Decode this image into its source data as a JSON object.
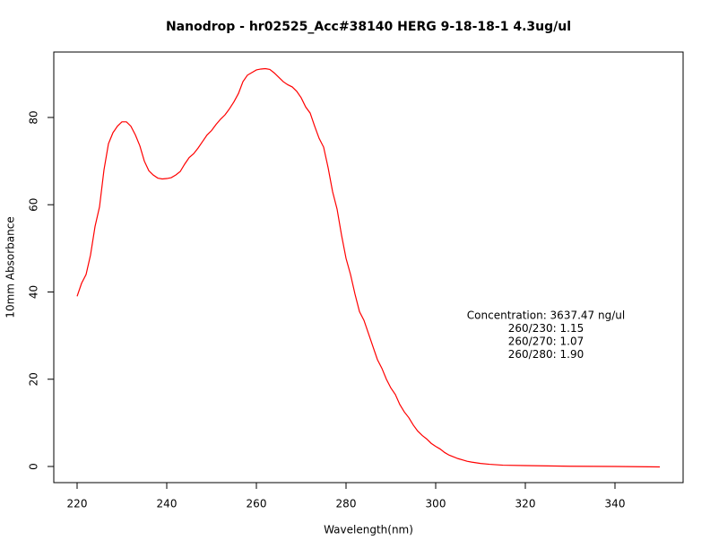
{
  "chart_data": {
    "type": "line",
    "title": "Nanodrop - hr02525_Acc#38140  HERG 9-18-18-1 4.3ug/ul",
    "x_label": "Wavelength(nm)",
    "y_label": "10mm Absorbance",
    "annotations": [
      "Concentration: 3637.47 ng/ul",
      "260/230: 1.15",
      "260/270: 1.07",
      "260/280: 1.90"
    ],
    "x": [
      220,
      221,
      222,
      223,
      224,
      225,
      226,
      227,
      228,
      229,
      230,
      231,
      232,
      233,
      234,
      235,
      236,
      237,
      238,
      239,
      240,
      241,
      242,
      243,
      244,
      245,
      246,
      247,
      248,
      249,
      250,
      251,
      252,
      253,
      254,
      255,
      256,
      257,
      258,
      259,
      260,
      261,
      262,
      263,
      264,
      265,
      266,
      267,
      268,
      269,
      270,
      271,
      272,
      273,
      274,
      275,
      276,
      277,
      278,
      279,
      280,
      281,
      282,
      283,
      284,
      285,
      286,
      287,
      288,
      289,
      290,
      291,
      292,
      293,
      294,
      295,
      296,
      297,
      298,
      299,
      300,
      301,
      302,
      303,
      304,
      305,
      306,
      307,
      308,
      310,
      312,
      315,
      320,
      330,
      340,
      350
    ],
    "series": [
      {
        "name": "absorbance",
        "color": "#ff0000",
        "values": [
          39,
          42,
          44,
          48.5,
          55,
          59.5,
          68,
          74,
          76.5,
          78,
          79,
          79,
          78,
          76,
          73.5,
          70,
          67.8,
          66.8,
          66.1,
          65.9,
          66,
          66.2,
          66.8,
          67.6,
          69.3,
          70.8,
          71.7,
          73,
          74.5,
          76,
          77,
          78.4,
          79.6,
          80.6,
          82,
          83.6,
          85.5,
          88.2,
          89.7,
          90.3,
          90.9,
          91.1,
          91.2,
          91,
          90.2,
          89.2,
          88.2,
          87.5,
          87,
          86,
          84.5,
          82.4,
          81,
          78,
          75.2,
          73.2,
          68.5,
          63,
          59,
          53,
          47.7,
          44,
          39.5,
          35.5,
          33.5,
          30.5,
          27.5,
          24.5,
          22.5,
          20,
          18,
          16.5,
          14.2,
          12.5,
          11.2,
          9.5,
          8.1,
          7.1,
          6.3,
          5.3,
          4.6,
          4,
          3.2,
          2.6,
          2.2,
          1.8,
          1.5,
          1.2,
          1,
          0.7,
          0.5,
          0.3,
          0.2,
          0.05,
          0,
          -0.1
        ]
      }
    ],
    "xlim": [
      214.8,
      355.2
    ],
    "ylim": [
      -3.7,
      95.0
    ],
    "xticks": [
      220,
      240,
      260,
      280,
      300,
      320,
      340
    ],
    "yticks": [
      0,
      20,
      40,
      60,
      80
    ]
  }
}
